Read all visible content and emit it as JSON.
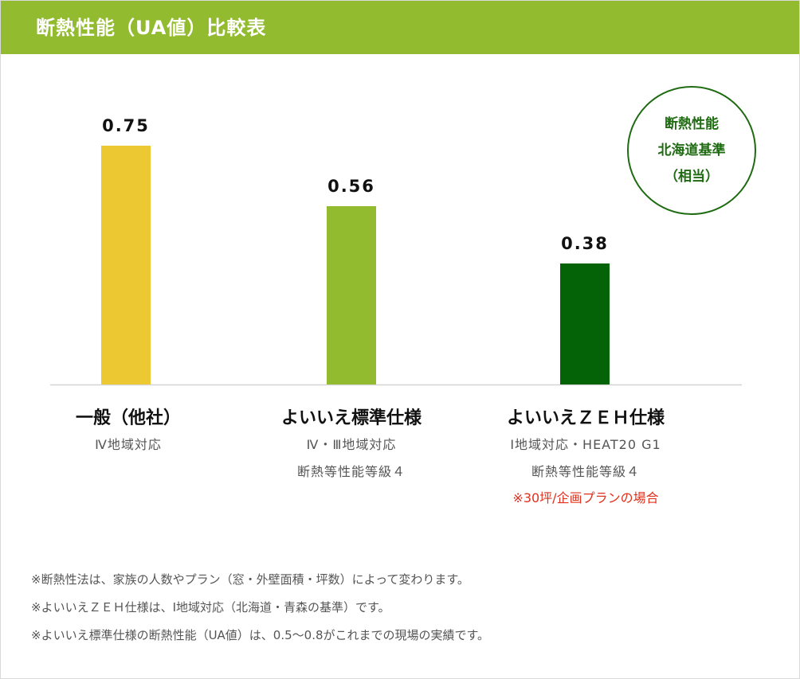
{
  "header": {
    "title": "断熱性能（UA値）比較表"
  },
  "badge": {
    "lines": [
      "断熱性能",
      "北海道基準",
      "（相当）"
    ]
  },
  "colors": {
    "header_bg": "#92bb30",
    "bar1": "#ecc832",
    "bar2": "#92bb30",
    "bar3": "#046307",
    "badge": "#1f6b12",
    "note_red": "#e0301e"
  },
  "chart_data": {
    "type": "bar",
    "categories": [
      "一般（他社）",
      "よいいえ標準仕様",
      "よいいえＺＥＨ仕様"
    ],
    "values": [
      0.75,
      0.56,
      0.38
    ],
    "value_labels": [
      "0.75",
      "0.56",
      "0.38"
    ],
    "bar_colors": [
      "#ecc832",
      "#92bb30",
      "#046307"
    ],
    "ylim": [
      0,
      0.8
    ],
    "grid": false,
    "legend": "none"
  },
  "categories": [
    {
      "name": "一般（他社）",
      "lines": [
        "Ⅳ地域対応"
      ],
      "note": ""
    },
    {
      "name": "よいいえ標準仕様",
      "lines": [
        "Ⅳ・Ⅲ地域対応",
        "断熱等性能等級４"
      ],
      "note": ""
    },
    {
      "name": "よいいえＺＥＨ仕様",
      "lines": [
        "Ⅰ地域対応・HEAT20 G1",
        "断熱等性能等級４"
      ],
      "note": "※30坪/企画プランの場合"
    }
  ],
  "notes": [
    "※断熱性法は、家族の人数やプラン（窓・外壁面積・坪数）によって変わります。",
    "※よいいえＺＥＨ仕様は、Ⅰ地域対応（北海道・青森の基準）です。",
    "※よいいえ標準仕様の断熱性能（UA値）は、0.5〜0.8がこれまでの現場の実績です。"
  ]
}
